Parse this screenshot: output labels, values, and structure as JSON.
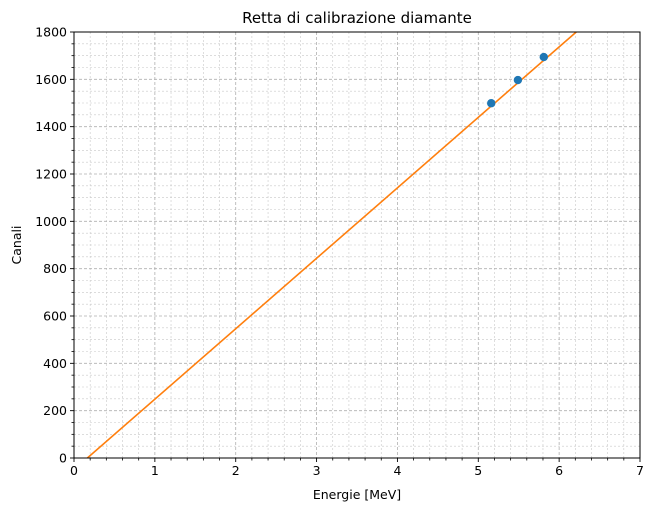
{
  "chart_data": {
    "type": "scatter",
    "title": "Retta di calibrazione diamante",
    "xlabel": "Energie [MeV]",
    "ylabel": "Canali",
    "xlim": [
      0,
      7
    ],
    "ylim": [
      0,
      1800
    ],
    "xticks": [
      0,
      1,
      2,
      3,
      4,
      5,
      6,
      7
    ],
    "xtick_labels": [
      "0",
      "1",
      "2",
      "3",
      "4",
      "5",
      "6",
      "7"
    ],
    "yticks": [
      0,
      200,
      400,
      600,
      800,
      1000,
      1200,
      1400,
      1600,
      1800
    ],
    "ytick_labels": [
      "0",
      "200",
      "400",
      "600",
      "800",
      "1000",
      "1200",
      "1400",
      "1600",
      "1800"
    ],
    "grid": true,
    "minor_grid": true,
    "series": [
      {
        "kind": "scatter",
        "color": "#1f77b4",
        "points": [
          {
            "x": 5.16,
            "y": 1499
          },
          {
            "x": 5.49,
            "y": 1597
          },
          {
            "x": 5.81,
            "y": 1694
          }
        ]
      },
      {
        "kind": "line",
        "color": "#ff7f0e",
        "slope": 297.7,
        "intercept": -49.2
      }
    ]
  }
}
